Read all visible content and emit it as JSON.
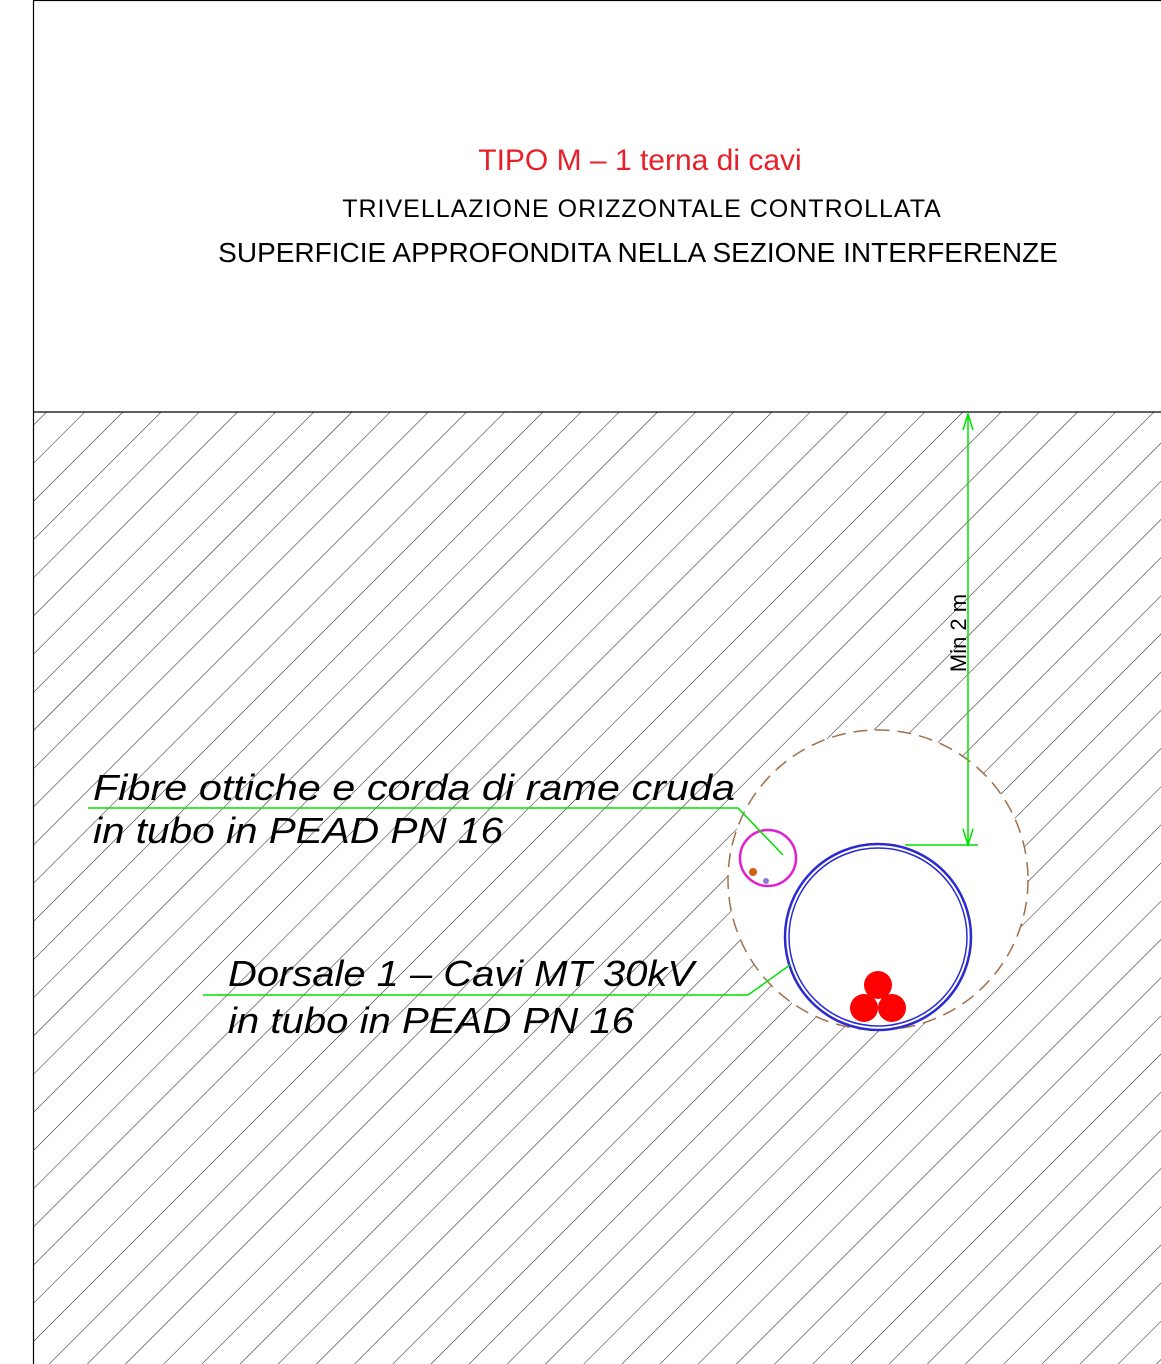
{
  "header": {
    "title": "TIPO M – 1 terna di cavi",
    "subtitle": "TRIVELLAZIONE ORIZZONTALE CONTROLLATA",
    "note": "SUPERFICIE APPROFONDITA NELLA SEZIONE INTERFERENZE"
  },
  "labels": [
    {
      "lines": [
        "Fibre ottiche e corda di rame cruda",
        "in tubo in PEAD PN 16"
      ]
    },
    {
      "lines": [
        "Dorsale 1 – Cavi MT 30kV",
        "in tubo in PEAD PN 16"
      ]
    }
  ],
  "dimension": "Min 2 m"
}
